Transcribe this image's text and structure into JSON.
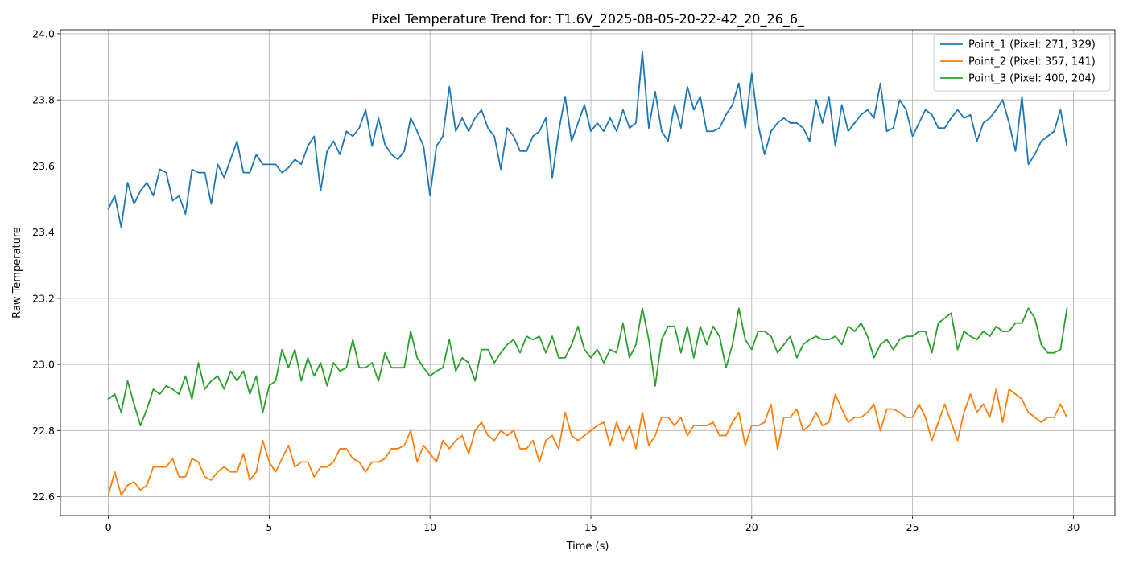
{
  "chart_data": {
    "type": "line",
    "title": "Pixel Temperature Trend for: T1.6V_2025-08-05-20-22-42_20_26_6_",
    "xlabel": "Time (s)",
    "ylabel": "Raw Temperature",
    "xlim": [
      -1.49,
      31.29
    ],
    "ylim": [
      22.543,
      24.012
    ],
    "xticks": [
      0,
      5,
      10,
      15,
      20,
      25,
      30
    ],
    "yticks": [
      22.6,
      22.8,
      23.0,
      23.2,
      23.4,
      23.6,
      23.8,
      24.0
    ],
    "xtick_labels": [
      "0",
      "5",
      "10",
      "15",
      "20",
      "25",
      "30"
    ],
    "ytick_labels": [
      "22.6",
      "22.8",
      "23.0",
      "23.2",
      "23.4",
      "23.6",
      "23.8",
      "24.0"
    ],
    "grid": true,
    "legend_position": "top-right",
    "x_start": 0,
    "x_step": 0.2,
    "series": [
      {
        "name": "Point_1 (Pixel: 271, 329)",
        "color": "#1f77b4",
        "values": [
          23.47,
          23.51,
          23.415,
          23.55,
          23.485,
          23.525,
          23.55,
          23.51,
          23.59,
          23.58,
          23.495,
          23.51,
          23.455,
          23.59,
          23.58,
          23.58,
          23.485,
          23.605,
          23.565,
          23.62,
          23.675,
          23.58,
          23.58,
          23.635,
          23.605,
          23.605,
          23.605,
          23.58,
          23.595,
          23.62,
          23.605,
          23.66,
          23.69,
          23.525,
          23.645,
          23.675,
          23.635,
          23.705,
          23.69,
          23.715,
          23.77,
          23.66,
          23.745,
          23.665,
          23.635,
          23.62,
          23.645,
          23.745,
          23.705,
          23.66,
          23.51,
          23.66,
          23.69,
          23.84,
          23.705,
          23.745,
          23.705,
          23.745,
          23.77,
          23.715,
          23.69,
          23.59,
          23.715,
          23.69,
          23.645,
          23.645,
          23.69,
          23.705,
          23.745,
          23.565,
          23.705,
          23.81,
          23.675,
          23.73,
          23.785,
          23.705,
          23.73,
          23.705,
          23.745,
          23.705,
          23.77,
          23.715,
          23.73,
          23.945,
          23.715,
          23.825,
          23.705,
          23.675,
          23.785,
          23.715,
          23.84,
          23.77,
          23.81,
          23.705,
          23.705,
          23.715,
          23.755,
          23.785,
          23.85,
          23.715,
          23.88,
          23.725,
          23.635,
          23.705,
          23.73,
          23.745,
          23.73,
          23.73,
          23.715,
          23.675,
          23.8,
          23.73,
          23.81,
          23.66,
          23.785,
          23.705,
          23.73,
          23.755,
          23.77,
          23.745,
          23.85,
          23.705,
          23.715,
          23.8,
          23.77,
          23.69,
          23.73,
          23.77,
          23.755,
          23.715,
          23.715,
          23.745,
          23.77,
          23.745,
          23.755,
          23.675,
          23.73,
          23.745,
          23.77,
          23.8,
          23.73,
          23.645,
          23.81,
          23.605,
          23.635,
          23.675,
          23.69,
          23.705,
          23.77,
          23.66
        ]
      },
      {
        "name": "Point_2 (Pixel: 357, 141)",
        "color": "#ff7f0e",
        "values": [
          22.605,
          22.675,
          22.605,
          22.635,
          22.645,
          22.62,
          22.635,
          22.69,
          22.69,
          22.69,
          22.715,
          22.66,
          22.66,
          22.715,
          22.705,
          22.66,
          22.65,
          22.675,
          22.69,
          22.675,
          22.675,
          22.73,
          22.65,
          22.675,
          22.77,
          22.705,
          22.675,
          22.715,
          22.755,
          22.69,
          22.705,
          22.705,
          22.66,
          22.69,
          22.69,
          22.705,
          22.745,
          22.745,
          22.715,
          22.705,
          22.675,
          22.705,
          22.705,
          22.715,
          22.745,
          22.745,
          22.755,
          22.8,
          22.705,
          22.755,
          22.73,
          22.705,
          22.77,
          22.745,
          22.77,
          22.785,
          22.73,
          22.8,
          22.825,
          22.785,
          22.77,
          22.8,
          22.785,
          22.8,
          22.745,
          22.745,
          22.77,
          22.705,
          22.77,
          22.785,
          22.745,
          22.855,
          22.785,
          22.77,
          22.785,
          22.8,
          22.815,
          22.825,
          22.755,
          22.825,
          22.77,
          22.815,
          22.745,
          22.855,
          22.755,
          22.785,
          22.84,
          22.84,
          22.815,
          22.84,
          22.785,
          22.815,
          22.815,
          22.815,
          22.825,
          22.785,
          22.785,
          22.825,
          22.855,
          22.755,
          22.815,
          22.815,
          22.825,
          22.88,
          22.745,
          22.84,
          22.84,
          22.865,
          22.8,
          22.815,
          22.855,
          22.815,
          22.825,
          22.91,
          22.865,
          22.825,
          22.84,
          22.84,
          22.855,
          22.88,
          22.8,
          22.865,
          22.865,
          22.855,
          22.84,
          22.84,
          22.88,
          22.84,
          22.77,
          22.825,
          22.88,
          22.825,
          22.77,
          22.855,
          22.91,
          22.855,
          22.88,
          22.84,
          22.925,
          22.825,
          22.925,
          22.91,
          22.895,
          22.855,
          22.84,
          22.825,
          22.84,
          22.84,
          22.88,
          22.84
        ]
      },
      {
        "name": "Point_3 (Pixel: 400, 204)",
        "color": "#2ca02c",
        "values": [
          22.895,
          22.91,
          22.855,
          22.95,
          22.88,
          22.815,
          22.865,
          22.925,
          22.91,
          22.935,
          22.925,
          22.91,
          22.965,
          22.895,
          23.005,
          22.925,
          22.95,
          22.965,
          22.925,
          22.98,
          22.95,
          22.98,
          22.91,
          22.965,
          22.855,
          22.935,
          22.95,
          23.045,
          22.99,
          23.045,
          22.95,
          23.02,
          22.965,
          23.005,
          22.935,
          23.005,
          22.98,
          22.99,
          23.075,
          22.99,
          22.99,
          23.005,
          22.95,
          23.035,
          22.99,
          22.99,
          22.99,
          23.1,
          23.02,
          22.99,
          22.965,
          22.98,
          22.99,
          23.075,
          22.98,
          23.02,
          23.005,
          22.95,
          23.045,
          23.045,
          23.005,
          23.035,
          23.06,
          23.075,
          23.035,
          23.085,
          23.075,
          23.085,
          23.035,
          23.085,
          23.02,
          23.02,
          23.06,
          23.115,
          23.045,
          23.02,
          23.045,
          23.005,
          23.045,
          23.035,
          23.125,
          23.02,
          23.06,
          23.17,
          23.075,
          22.935,
          23.075,
          23.115,
          23.115,
          23.035,
          23.115,
          23.02,
          23.115,
          23.06,
          23.115,
          23.085,
          22.99,
          23.06,
          23.17,
          23.075,
          23.045,
          23.1,
          23.1,
          23.085,
          23.035,
          23.06,
          23.085,
          23.02,
          23.06,
          23.075,
          23.085,
          23.075,
          23.075,
          23.085,
          23.06,
          23.115,
          23.1,
          23.125,
          23.085,
          23.02,
          23.06,
          23.075,
          23.045,
          23.075,
          23.085,
          23.085,
          23.1,
          23.1,
          23.035,
          23.125,
          23.14,
          23.155,
          23.045,
          23.1,
          23.085,
          23.075,
          23.1,
          23.085,
          23.115,
          23.1,
          23.1,
          23.125,
          23.125,
          23.17,
          23.14,
          23.06,
          23.035,
          23.035,
          23.045,
          23.17
        ]
      }
    ]
  }
}
